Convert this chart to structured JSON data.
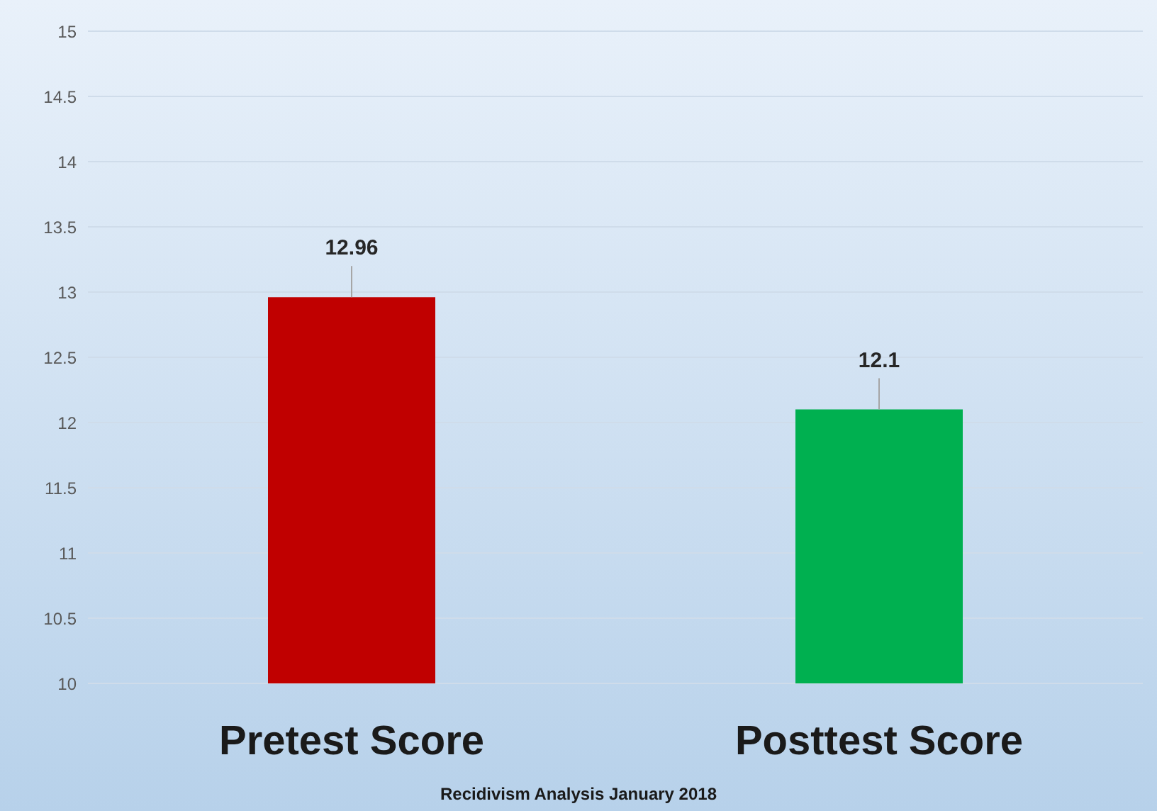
{
  "chart_data": {
    "type": "bar",
    "categories": [
      "Pretest Score",
      "Posttest Score"
    ],
    "values": [
      12.96,
      12.1
    ],
    "colors": [
      "#c00000",
      "#00b050"
    ],
    "ylim": [
      10,
      15
    ],
    "yticks": [
      10,
      10.5,
      11,
      11.5,
      12,
      12.5,
      13,
      13.5,
      14,
      14.5,
      15
    ],
    "grid": "y",
    "data_labels": true,
    "annotations": [
      "Recidivism Analysis January 2018"
    ]
  }
}
